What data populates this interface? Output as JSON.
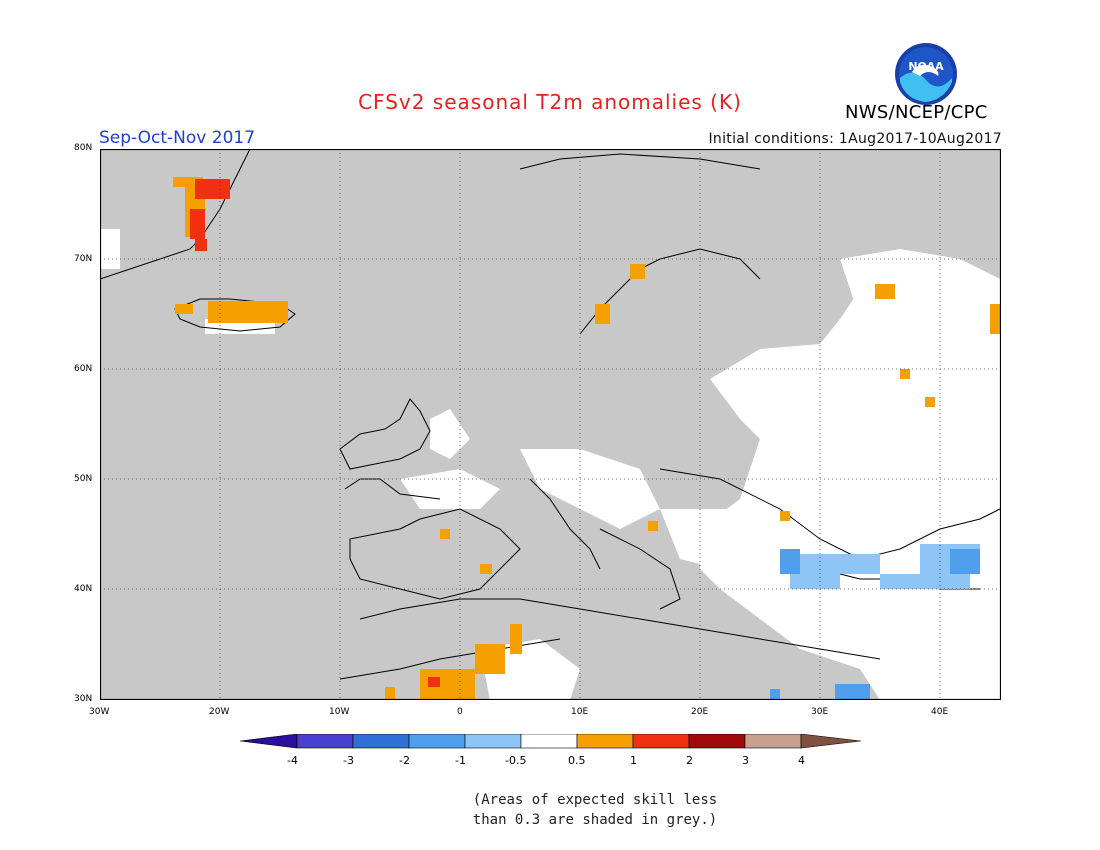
{
  "header": {
    "title": "CFSv2 seasonal T2m anomalies (K)",
    "period": "Sep-Oct-Nov 2017",
    "initial_conditions": "Initial conditions: 1Aug2017-10Aug2017",
    "agency": "NWS/NCEP/CPC",
    "logo_icon": "noaa-logo-icon"
  },
  "map": {
    "lat_labels": [
      "80N",
      "70N",
      "60N",
      "50N",
      "40N",
      "30N"
    ],
    "lon_labels": [
      "30W",
      "20W",
      "10W",
      "0",
      "10E",
      "20E",
      "30E",
      "40E"
    ],
    "background_color": "#c8c8c8"
  },
  "colorbar": {
    "labels": [
      "-4",
      "-3",
      "-2",
      "-1",
      "-0.5",
      "0.5",
      "1",
      "2",
      "3",
      "4"
    ],
    "colors": [
      "#2a0fa0",
      "#4a3fd0",
      "#2f6fd6",
      "#4f9fec",
      "#8fc4f6",
      "#ffffff",
      "#f5a000",
      "#f03010",
      "#a00a0a",
      "#c8a090",
      "#805040"
    ]
  },
  "footnote": {
    "line1": "(Areas of expected skill less",
    "line2": "than 0.3 are shaded in grey.)"
  }
}
